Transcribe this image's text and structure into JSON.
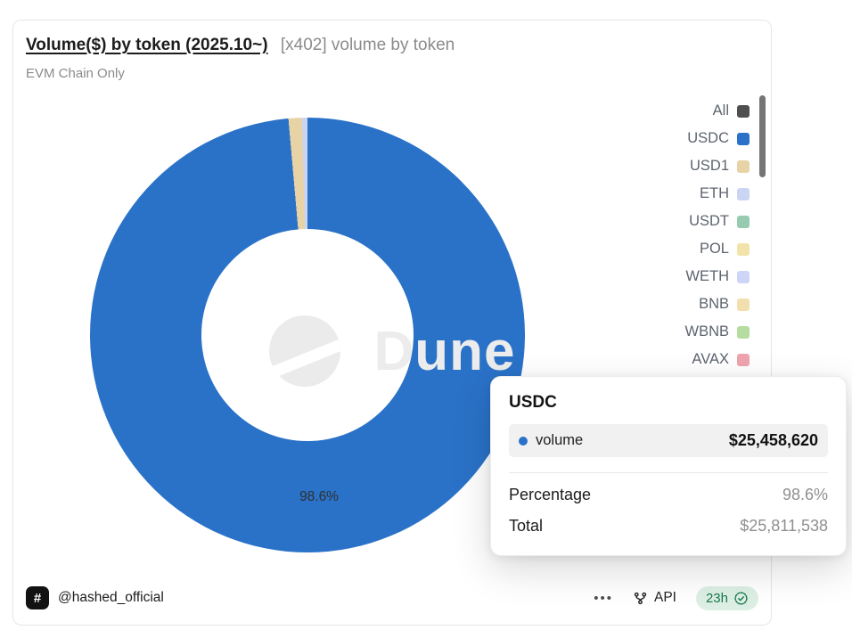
{
  "header": {
    "title": "Volume($) by token (2025.10~)",
    "subtitle": "[x402] volume by token",
    "description": "EVM Chain Only"
  },
  "watermark": "Dune",
  "chart_data": {
    "type": "pie",
    "donut": true,
    "title": "Volume($) by token (2025.10~)",
    "subtitle": "[x402] volume by token",
    "note": "EVM Chain Only",
    "series_name": "volume",
    "legend_position": "right",
    "slices": [
      {
        "label": "USDC",
        "percentage": 98.6,
        "volume_usd": 25458620,
        "color": "#2A72C8"
      },
      {
        "label": "USD1",
        "percentage": 1.0,
        "color": "#E7D3A6"
      },
      {
        "label": "ETH",
        "percentage": 0.4,
        "color": "#C9D5F2"
      }
    ],
    "total_usd": 25811538,
    "slice_label": "98.6%",
    "legend": [
      {
        "label": "All",
        "color": "#4F4F4F"
      },
      {
        "label": "USDC",
        "color": "#2A72C8"
      },
      {
        "label": "USD1",
        "color": "#E7D3A6"
      },
      {
        "label": "ETH",
        "color": "#C9D5F2"
      },
      {
        "label": "USDT",
        "color": "#97CBAF"
      },
      {
        "label": "POL",
        "color": "#F2E3AB"
      },
      {
        "label": "WETH",
        "color": "#CDD6F6"
      },
      {
        "label": "BNB",
        "color": "#F2DFAD"
      },
      {
        "label": "WBNB",
        "color": "#B6DCA0"
      },
      {
        "label": "AVAX",
        "color": "#EFA4AE"
      }
    ]
  },
  "tooltip": {
    "title": "USDC",
    "series": {
      "label": "volume",
      "value": "$25,458,620"
    },
    "rows": [
      {
        "label": "Percentage",
        "value": "98.6%"
      },
      {
        "label": "Total",
        "value": "$25,811,538"
      }
    ]
  },
  "footer": {
    "author": "@hashed_official",
    "author_badge": "#",
    "menu_label": "•••",
    "api_label": "API",
    "refreshed": "23h"
  }
}
